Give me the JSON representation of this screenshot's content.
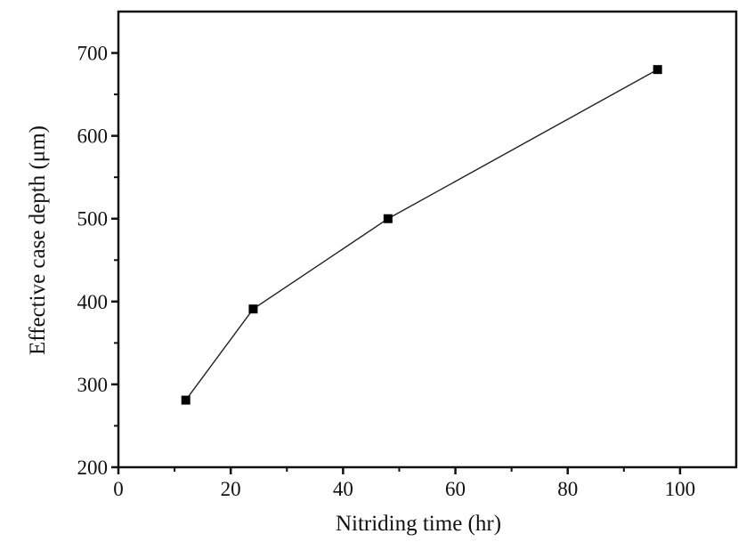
{
  "chart_data": {
    "type": "line",
    "title": "",
    "xlabel": "Nitriding time (hr)",
    "ylabel": "Effective case depth (μm)",
    "xlim": [
      0,
      110
    ],
    "ylim": [
      200,
      750
    ],
    "xticks": [
      0,
      20,
      40,
      60,
      80,
      100
    ],
    "yticks": [
      200,
      300,
      400,
      500,
      600,
      700
    ],
    "xtick_labels": [
      "0",
      "20",
      "40",
      "60",
      "80",
      "100"
    ],
    "ytick_labels": [
      "200",
      "300",
      "400",
      "500",
      "600",
      "700"
    ],
    "grid": false,
    "marker": "square",
    "series": [
      {
        "x": [
          12,
          24,
          48,
          96
        ],
        "y": [
          281,
          391,
          500,
          680
        ],
        "color": "#000000"
      }
    ]
  }
}
